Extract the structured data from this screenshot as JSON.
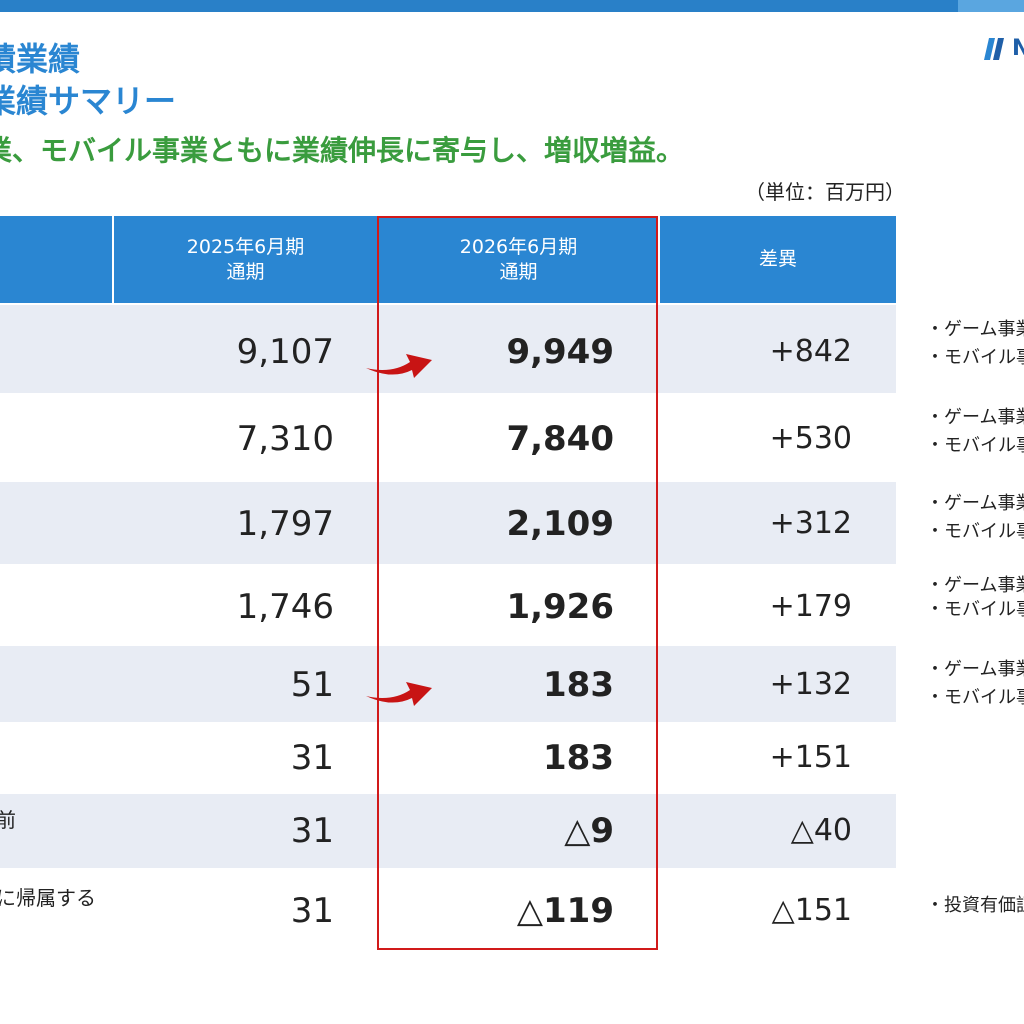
{
  "header": {
    "title_line1": "績業績",
    "title_line2": "業績サマリー",
    "logo_text": "N",
    "subtitle": "業、モバイル事業ともに業績伸長に寄与し、増収増益。",
    "unit": "（単位：百万円）"
  },
  "table": {
    "columns": [
      {
        "line1": "2025年6月期",
        "line2": "通期"
      },
      {
        "line1": "2026年6月期",
        "line2": "通期"
      },
      {
        "line1": "差異"
      }
    ],
    "rows": [
      {
        "label": "",
        "prev": "9,107",
        "curr": "9,949",
        "diff": "+842",
        "notes": [
          "・ゲーム事業",
          "・モバイル事業"
        ]
      },
      {
        "label": "",
        "prev": "7,310",
        "curr": "7,840",
        "diff": "+530",
        "notes": [
          "・ゲーム事業",
          "・モバイル事業"
        ]
      },
      {
        "label": "",
        "prev": "1,797",
        "curr": "2,109",
        "diff": "+312",
        "notes": [
          "・ゲーム事業",
          "・モバイル事業"
        ]
      },
      {
        "label": "",
        "prev": "1,746",
        "curr": "1,926",
        "diff": "+179",
        "notes": [
          "・ゲーム事業",
          "・モバイル事業"
        ]
      },
      {
        "label": "",
        "prev": "51",
        "curr": "183",
        "diff": "+132",
        "notes": [
          "・ゲーム事業",
          "・モバイル事業"
        ]
      },
      {
        "label": "",
        "prev": "31",
        "curr": "183",
        "diff": "+151",
        "notes": []
      },
      {
        "label": "前",
        "prev": "31",
        "curr": "△9",
        "diff": "△40",
        "notes": []
      },
      {
        "label": "に帰属する",
        "prev": "31",
        "curr": "△119",
        "diff": "△151",
        "notes": [
          "・投資有価証"
        ]
      }
    ]
  },
  "colors": {
    "accent_blue": "#2a86d2",
    "row_shade": "#e8ecf4",
    "highlight_red": "#d11a1a",
    "subtitle_green": "#3a9c3e"
  },
  "icons": {
    "arrow": "curved-red-arrow-icon",
    "logo": "company-logo-icon"
  }
}
